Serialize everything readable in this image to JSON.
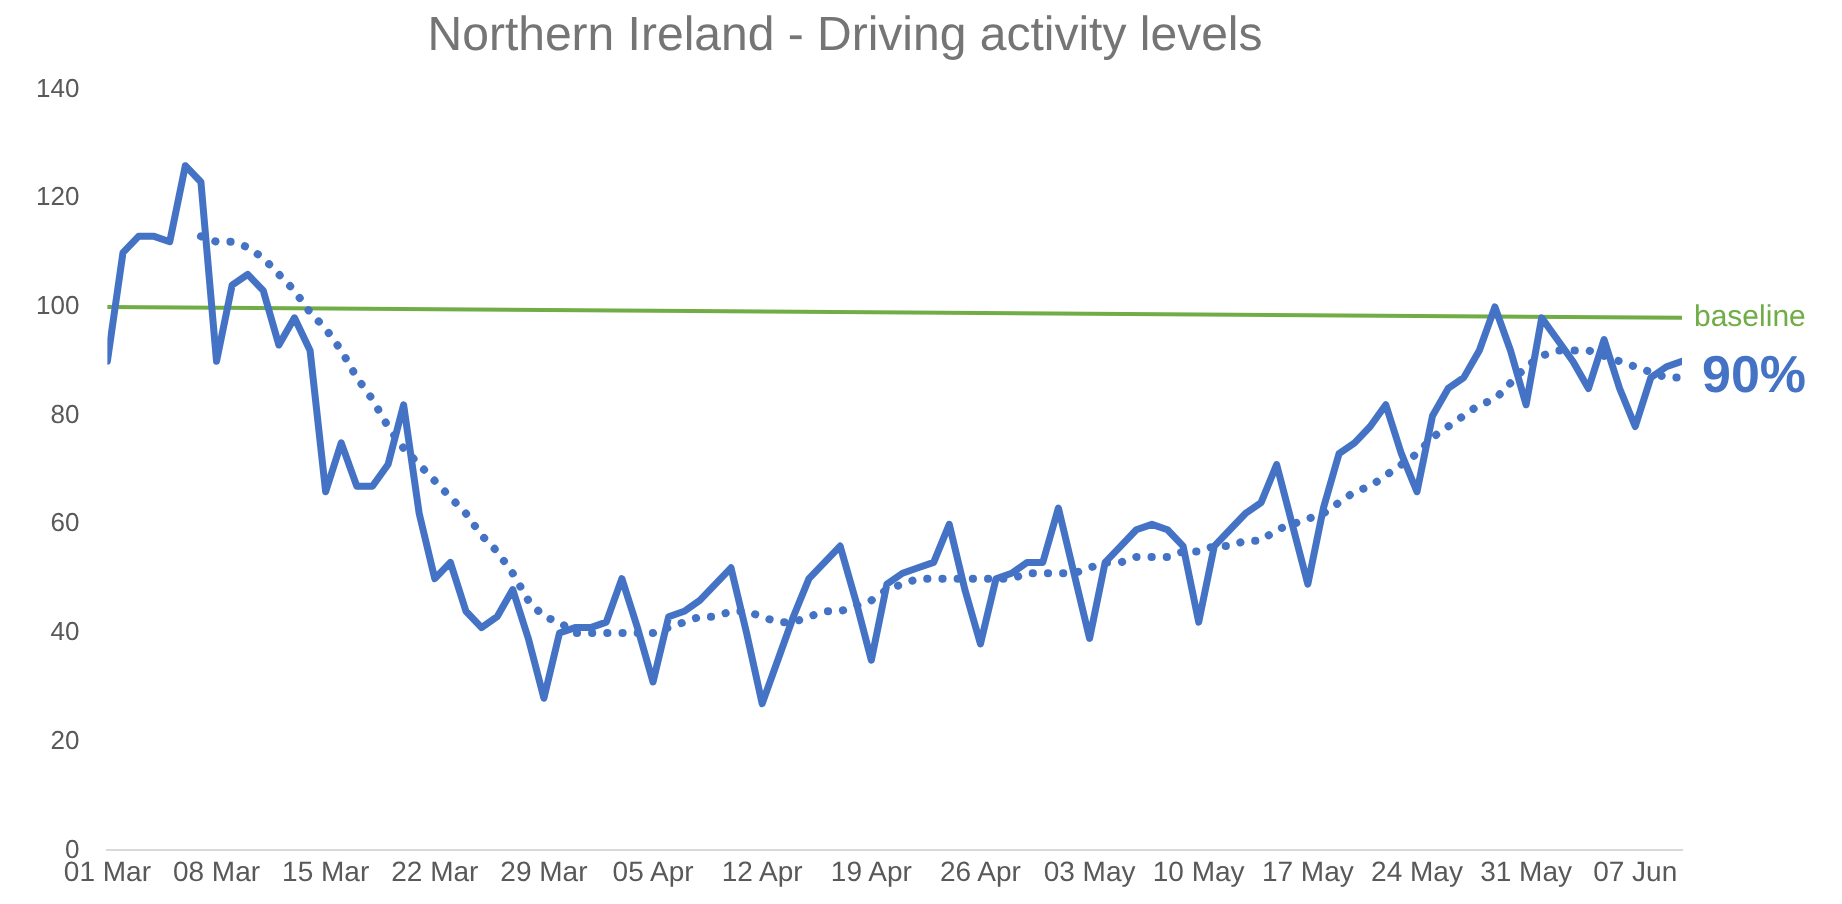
{
  "chart_data": {
    "type": "line",
    "title": "Northern Ireland - Driving activity levels",
    "xlim": [
      "--03-01",
      "--06-10"
    ],
    "xticks": [
      {
        "value": "--03-01",
        "label": "01 Mar"
      },
      {
        "value": "--03-08",
        "label": "08 Mar"
      },
      {
        "value": "--03-15",
        "label": "15 Mar"
      },
      {
        "value": "--03-22",
        "label": "22 Mar"
      },
      {
        "value": "--03-29",
        "label": "29 Mar"
      },
      {
        "value": "--04-05",
        "label": "05 Apr"
      },
      {
        "value": "--04-12",
        "label": "12 Apr"
      },
      {
        "value": "--04-19",
        "label": "19 Apr"
      },
      {
        "value": "--04-26",
        "label": "26 Apr"
      },
      {
        "value": "--05-03",
        "label": "03 May"
      },
      {
        "value": "--05-10",
        "label": "10 May"
      },
      {
        "value": "--05-17",
        "label": "17 May"
      },
      {
        "value": "--05-24",
        "label": "24 May"
      },
      {
        "value": "--05-31",
        "label": "31 May"
      },
      {
        "value": "--06-07",
        "label": "07 Jun"
      }
    ],
    "ylim": [
      0,
      140
    ],
    "yticks": [
      0,
      20,
      40,
      60,
      80,
      100,
      120,
      140
    ],
    "grid": false,
    "legend": false,
    "x": [
      "--03-01",
      "--03-02",
      "--03-03",
      "--03-04",
      "--03-05",
      "--03-06",
      "--03-07",
      "--03-08",
      "--03-09",
      "--03-10",
      "--03-11",
      "--03-12",
      "--03-13",
      "--03-14",
      "--03-15",
      "--03-16",
      "--03-17",
      "--03-18",
      "--03-19",
      "--03-20",
      "--03-21",
      "--03-22",
      "--03-23",
      "--03-24",
      "--03-25",
      "--03-26",
      "--03-27",
      "--03-28",
      "--03-29",
      "--03-30",
      "--03-31",
      "--04-01",
      "--04-02",
      "--04-03",
      "--04-04",
      "--04-05",
      "--04-06",
      "--04-07",
      "--04-08",
      "--04-09",
      "--04-10",
      "--04-11",
      "--04-12",
      "--04-13",
      "--04-14",
      "--04-15",
      "--04-16",
      "--04-17",
      "--04-18",
      "--04-19",
      "--04-20",
      "--04-21",
      "--04-22",
      "--04-23",
      "--04-24",
      "--04-25",
      "--04-26",
      "--04-27",
      "--04-28",
      "--04-29",
      "--04-30",
      "--05-01",
      "--05-02",
      "--05-03",
      "--05-04",
      "--05-05",
      "--05-06",
      "--05-07",
      "--05-08",
      "--05-09",
      "--05-10",
      "--05-11",
      "--05-12",
      "--05-13",
      "--05-14",
      "--05-15",
      "--05-16",
      "--05-17",
      "--05-18",
      "--05-19",
      "--05-20",
      "--05-21",
      "--05-22",
      "--05-23",
      "--05-24",
      "--05-25",
      "--05-26",
      "--05-27",
      "--05-28",
      "--05-29",
      "--05-30",
      "--05-31",
      "--06-01",
      "--06-02",
      "--06-03",
      "--06-04",
      "--06-05",
      "--06-06",
      "--06-07",
      "--06-08",
      "--06-09",
      "--06-10"
    ],
    "series": [
      {
        "color": "#4472c4",
        "line_style": "solid",
        "values": [
          90,
          110,
          113,
          113,
          112,
          126,
          123,
          90,
          104,
          106,
          103,
          93,
          98,
          92,
          66,
          75,
          67,
          67,
          71,
          82,
          62,
          50,
          53,
          44,
          41,
          43,
          48,
          39,
          28,
          40,
          41,
          41,
          42,
          50,
          41,
          31,
          43,
          44,
          46,
          49,
          52,
          40,
          27,
          35,
          43,
          50,
          53,
          56,
          46,
          35,
          49,
          51,
          52,
          53,
          60,
          48,
          38,
          50,
          51,
          53,
          53,
          63,
          51,
          39,
          53,
          56,
          59,
          60,
          59,
          56,
          42,
          56,
          59,
          62,
          64,
          71,
          60,
          49,
          63,
          73,
          75,
          78,
          82,
          73,
          66,
          80,
          85,
          87,
          92,
          100,
          92,
          82,
          98,
          94,
          90,
          85,
          94,
          85,
          78,
          87,
          89,
          90
        ]
      },
      {
        "color": "#4472c4",
        "line_style": "dotted",
        "values": [
          null,
          null,
          null,
          null,
          null,
          null,
          113,
          112,
          112,
          111,
          109,
          106,
          103,
          99,
          96,
          92,
          87,
          83,
          78,
          74,
          71,
          68,
          65,
          62,
          58,
          55,
          51,
          46,
          43,
          42,
          40,
          40,
          40,
          40,
          40,
          40,
          41,
          42,
          43,
          43,
          44,
          44,
          43,
          42,
          42,
          43,
          44,
          44,
          45,
          46,
          48,
          49,
          50,
          50,
          50,
          50,
          50,
          50,
          50,
          51,
          51,
          51,
          51,
          52,
          53,
          53,
          54,
          54,
          54,
          55,
          55,
          56,
          56,
          57,
          57,
          59,
          60,
          61,
          62,
          64,
          66,
          67,
          69,
          71,
          73,
          76,
          78,
          80,
          82,
          83,
          86,
          89,
          91,
          92,
          92,
          92,
          91,
          90,
          89,
          88,
          87,
          87
        ]
      },
      {
        "name": "baseline",
        "color": "#70ad47",
        "line_style": "solid",
        "x": [
          "--03-01",
          "--06-10"
        ],
        "values": [
          100,
          98
        ]
      }
    ],
    "annotations": [
      {
        "text": "90%",
        "x": "--06-10",
        "y": 90
      }
    ]
  }
}
